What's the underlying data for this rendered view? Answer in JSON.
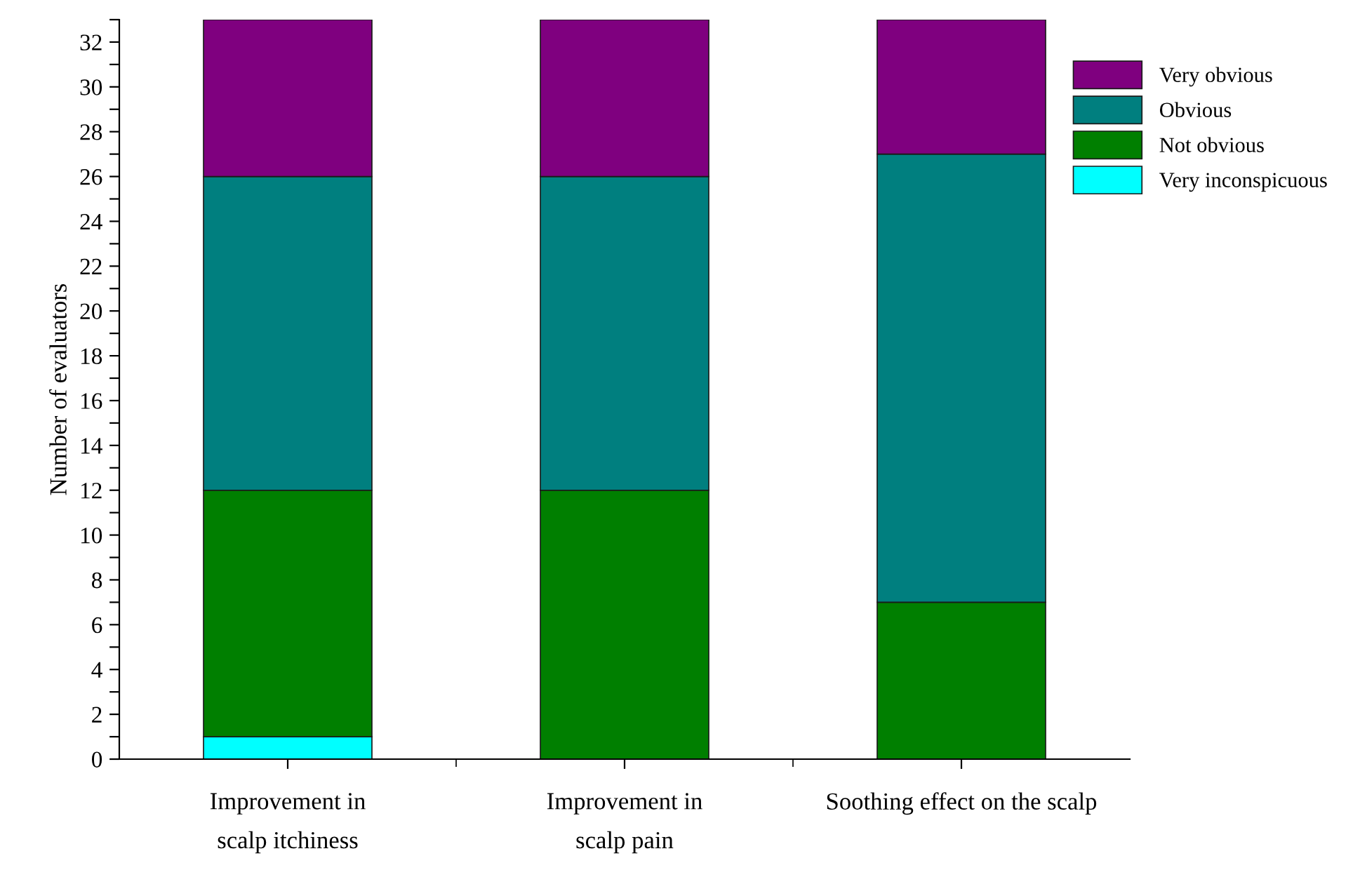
{
  "chart_data": {
    "type": "bar",
    "stacked": true,
    "ylabel": "Number of evaluators",
    "categories": [
      "Improvement in\nscalp itchiness",
      "Improvement in\nscalp pain",
      "Soothing effect on the scalp"
    ],
    "series": [
      {
        "name": "Very inconspicuous",
        "color": "#00ffff",
        "values": [
          1,
          0,
          0
        ]
      },
      {
        "name": "Not obvious",
        "color": "#007f00",
        "values": [
          11,
          12,
          7
        ]
      },
      {
        "name": "Obvious",
        "color": "#007f7f",
        "values": [
          14,
          14,
          20
        ]
      },
      {
        "name": "Very obvious",
        "color": "#7f007f",
        "values": [
          7,
          7,
          6
        ]
      }
    ],
    "ylim": [
      0,
      33
    ],
    "yticks": [
      0,
      {
        "value": 1,
        "label": null
      },
      2,
      {
        "value": 3,
        "label": null
      },
      4,
      {
        "value": 5,
        "label": null
      },
      6,
      {
        "value": 7,
        "label": null
      },
      8,
      {
        "value": 9,
        "label": null
      },
      10,
      {
        "value": 11,
        "label": null
      },
      12,
      {
        "value": 13,
        "label": null
      },
      14,
      {
        "value": 15,
        "label": null
      },
      16,
      {
        "value": 17,
        "label": null
      },
      18,
      {
        "value": 19,
        "label": null
      },
      20,
      {
        "value": 21,
        "label": null
      },
      22,
      {
        "value": 23,
        "label": null
      },
      24,
      {
        "value": 25,
        "label": null
      },
      26,
      {
        "value": 27,
        "label": null
      },
      28,
      {
        "value": 29,
        "label": null
      },
      30,
      {
        "value": 31,
        "label": null
      },
      32,
      {
        "value": 33,
        "label": null
      }
    ],
    "legend": "top right",
    "grid": false
  }
}
